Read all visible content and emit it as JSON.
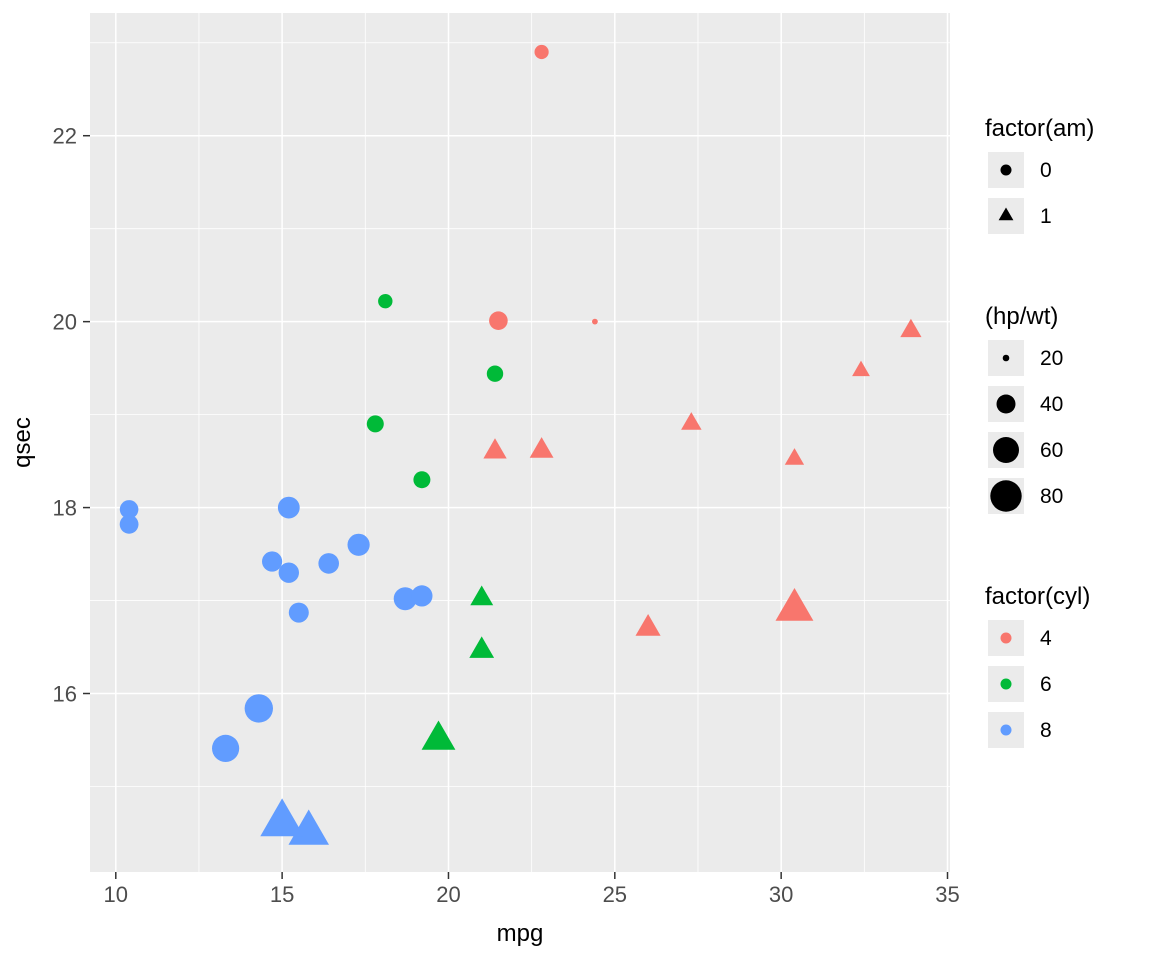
{
  "chart_data": {
    "type": "scatter",
    "title": "",
    "xlabel": "mpg",
    "ylabel": "qsec",
    "xlim": [
      9.225,
      35.075
    ],
    "ylim": [
      14.08,
      23.32
    ],
    "x_ticks": [
      10,
      15,
      20,
      25,
      30,
      35
    ],
    "y_ticks": [
      16,
      18,
      20,
      22
    ],
    "x_tick_labels": [
      "10",
      "15",
      "20",
      "25",
      "30",
      "35"
    ],
    "y_tick_labels": [
      "16",
      "18",
      "20",
      "22"
    ],
    "grid": true,
    "legend_position": "right",
    "encoding": {
      "x": "mpg",
      "y": "qsec",
      "color": "factor(cyl)",
      "shape": "factor(am)",
      "size": "hp/wt"
    },
    "color_map": {
      "4": "#F8766D",
      "6": "#00BA38",
      "8": "#619CFF"
    },
    "shape_map": {
      "0": "circle",
      "1": "triangle"
    },
    "points": [
      {
        "mpg": 21.0,
        "qsec": 16.46,
        "cyl": 6,
        "am": 1,
        "hp_wt": 41.98
      },
      {
        "mpg": 21.0,
        "qsec": 17.02,
        "cyl": 6,
        "am": 1,
        "hp_wt": 38.26
      },
      {
        "mpg": 22.8,
        "qsec": 18.61,
        "cyl": 4,
        "am": 1,
        "hp_wt": 40.09
      },
      {
        "mpg": 21.4,
        "qsec": 19.44,
        "cyl": 6,
        "am": 0,
        "hp_wt": 34.21
      },
      {
        "mpg": 18.7,
        "qsec": 17.02,
        "cyl": 8,
        "am": 0,
        "hp_wt": 50.87
      },
      {
        "mpg": 18.1,
        "qsec": 20.22,
        "cyl": 6,
        "am": 0,
        "hp_wt": 30.35
      },
      {
        "mpg": 14.3,
        "qsec": 15.84,
        "cyl": 8,
        "am": 0,
        "hp_wt": 68.63
      },
      {
        "mpg": 24.4,
        "qsec": 20.0,
        "cyl": 4,
        "am": 0,
        "hp_wt": 19.44
      },
      {
        "mpg": 22.8,
        "qsec": 22.9,
        "cyl": 4,
        "am": 0,
        "hp_wt": 30.16
      },
      {
        "mpg": 19.2,
        "qsec": 18.3,
        "cyl": 6,
        "am": 0,
        "hp_wt": 35.76
      },
      {
        "mpg": 17.8,
        "qsec": 18.9,
        "cyl": 6,
        "am": 0,
        "hp_wt": 35.76
      },
      {
        "mpg": 16.4,
        "qsec": 17.4,
        "cyl": 8,
        "am": 0,
        "hp_wt": 44.23
      },
      {
        "mpg": 17.3,
        "qsec": 17.6,
        "cyl": 8,
        "am": 0,
        "hp_wt": 48.26
      },
      {
        "mpg": 15.2,
        "qsec": 18.0,
        "cyl": 8,
        "am": 0,
        "hp_wt": 47.62
      },
      {
        "mpg": 10.4,
        "qsec": 17.98,
        "cyl": 8,
        "am": 0,
        "hp_wt": 39.05
      },
      {
        "mpg": 10.4,
        "qsec": 17.82,
        "cyl": 8,
        "am": 0,
        "hp_wt": 39.64
      },
      {
        "mpg": 14.7,
        "qsec": 17.42,
        "cyl": 8,
        "am": 0,
        "hp_wt": 43.03
      },
      {
        "mpg": 32.4,
        "qsec": 19.47,
        "cyl": 4,
        "am": 1,
        "hp_wt": 30.0
      },
      {
        "mpg": 30.4,
        "qsec": 18.52,
        "cyl": 4,
        "am": 1,
        "hp_wt": 32.2
      },
      {
        "mpg": 33.9,
        "qsec": 19.9,
        "cyl": 4,
        "am": 1,
        "hp_wt": 35.42
      },
      {
        "mpg": 21.5,
        "qsec": 20.01,
        "cyl": 4,
        "am": 0,
        "hp_wt": 39.35
      },
      {
        "mpg": 15.5,
        "qsec": 16.87,
        "cyl": 8,
        "am": 0,
        "hp_wt": 42.61
      },
      {
        "mpg": 15.2,
        "qsec": 17.3,
        "cyl": 8,
        "am": 0,
        "hp_wt": 43.67
      },
      {
        "mpg": 13.3,
        "qsec": 15.41,
        "cyl": 8,
        "am": 0,
        "hp_wt": 63.8
      },
      {
        "mpg": 19.2,
        "qsec": 17.05,
        "cyl": 8,
        "am": 0,
        "hp_wt": 45.51
      },
      {
        "mpg": 27.3,
        "qsec": 18.9,
        "cyl": 4,
        "am": 1,
        "hp_wt": 34.11
      },
      {
        "mpg": 26.0,
        "qsec": 16.7,
        "cyl": 4,
        "am": 1,
        "hp_wt": 42.52
      },
      {
        "mpg": 30.4,
        "qsec": 16.9,
        "cyl": 4,
        "am": 1,
        "hp_wt": 74.69
      },
      {
        "mpg": 15.8,
        "qsec": 14.5,
        "cyl": 8,
        "am": 1,
        "hp_wt": 83.28
      },
      {
        "mpg": 19.7,
        "qsec": 15.5,
        "cyl": 6,
        "am": 1,
        "hp_wt": 63.18
      },
      {
        "mpg": 15.0,
        "qsec": 14.6,
        "cyl": 8,
        "am": 1,
        "hp_wt": 93.84
      },
      {
        "mpg": 21.4,
        "qsec": 18.6,
        "cyl": 4,
        "am": 1,
        "hp_wt": 39.21
      }
    ],
    "legends": [
      {
        "title": "factor(am)",
        "type": "shape",
        "entries": [
          {
            "label": "0",
            "shape": "circle"
          },
          {
            "label": "1",
            "shape": "triangle"
          }
        ]
      },
      {
        "title": "(hp/wt)",
        "type": "size",
        "entries": [
          {
            "label": "20",
            "value": 20
          },
          {
            "label": "40",
            "value": 40
          },
          {
            "label": "60",
            "value": 60
          },
          {
            "label": "80",
            "value": 80
          }
        ]
      },
      {
        "title": "factor(cyl)",
        "type": "color",
        "entries": [
          {
            "label": "4",
            "color": "#F8766D"
          },
          {
            "label": "6",
            "color": "#00BA38"
          },
          {
            "label": "8",
            "color": "#619CFF"
          }
        ]
      }
    ],
    "style": {
      "background": "#FFFFFF",
      "panel_bg": "#EBEBEB",
      "grid_color": "#FFFFFF",
      "axis_text_color": "#4D4D4D",
      "title_text_color": "#000000",
      "tick_mark_color": "#333333",
      "legend_key_bg": "#EBEBEB",
      "symbol_color": "#000000"
    }
  }
}
